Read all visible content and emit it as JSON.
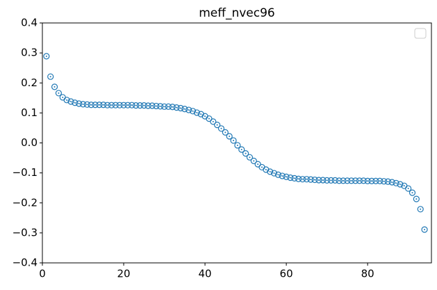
{
  "chart_data": {
    "type": "scatter",
    "title": "meff_nvec96",
    "x": [
      1,
      2,
      3,
      4,
      5,
      6,
      7,
      8,
      9,
      10,
      11,
      12,
      13,
      14,
      15,
      16,
      17,
      18,
      19,
      20,
      21,
      22,
      23,
      24,
      25,
      26,
      27,
      28,
      29,
      30,
      31,
      32,
      33,
      34,
      35,
      36,
      37,
      38,
      39,
      40,
      41,
      42,
      43,
      44,
      45,
      46,
      47,
      48,
      49,
      50,
      51,
      52,
      53,
      54,
      55,
      56,
      57,
      58,
      59,
      60,
      61,
      62,
      63,
      64,
      65,
      66,
      67,
      68,
      69,
      70,
      71,
      72,
      73,
      74,
      75,
      76,
      77,
      78,
      79,
      80,
      81,
      82,
      83,
      84,
      85,
      86,
      87,
      88,
      89,
      90,
      91,
      92,
      93,
      94
    ],
    "series": [
      {
        "color": "#1f77b4",
        "values": [
          0.289,
          0.221,
          0.187,
          0.166,
          0.152,
          0.143,
          0.138,
          0.134,
          0.131,
          0.129,
          0.128,
          0.127,
          0.127,
          0.127,
          0.127,
          0.126,
          0.126,
          0.126,
          0.126,
          0.126,
          0.126,
          0.126,
          0.125,
          0.125,
          0.125,
          0.124,
          0.124,
          0.123,
          0.122,
          0.121,
          0.121,
          0.12,
          0.118,
          0.116,
          0.113,
          0.11,
          0.106,
          0.101,
          0.096,
          0.089,
          0.081,
          0.071,
          0.06,
          0.048,
          0.035,
          0.022,
          0.008,
          -0.008,
          -0.022,
          -0.035,
          -0.048,
          -0.06,
          -0.071,
          -0.081,
          -0.089,
          -0.096,
          -0.101,
          -0.106,
          -0.11,
          -0.113,
          -0.116,
          -0.118,
          -0.12,
          -0.121,
          -0.121,
          -0.122,
          -0.123,
          -0.124,
          -0.124,
          -0.125,
          -0.125,
          -0.125,
          -0.126,
          -0.126,
          -0.126,
          -0.126,
          -0.126,
          -0.126,
          -0.126,
          -0.127,
          -0.127,
          -0.127,
          -0.127,
          -0.128,
          -0.129,
          -0.131,
          -0.134,
          -0.138,
          -0.143,
          -0.152,
          -0.166,
          -0.187,
          -0.221,
          -0.289
        ]
      }
    ],
    "xlim": [
      0,
      95.7
    ],
    "xticks": [
      0,
      20,
      40,
      60,
      80
    ],
    "ylim": [
      -0.4,
      0.4
    ],
    "yticks": [
      {
        "value": -0.4,
        "label": "−0.4"
      },
      {
        "value": -0.3,
        "label": "−0.3"
      },
      {
        "value": -0.2,
        "label": "−0.2"
      },
      {
        "value": -0.1,
        "label": "−0.1"
      },
      {
        "value": 0,
        "label": "0.0"
      },
      0.1,
      0.2,
      0.3,
      0.4
    ]
  }
}
